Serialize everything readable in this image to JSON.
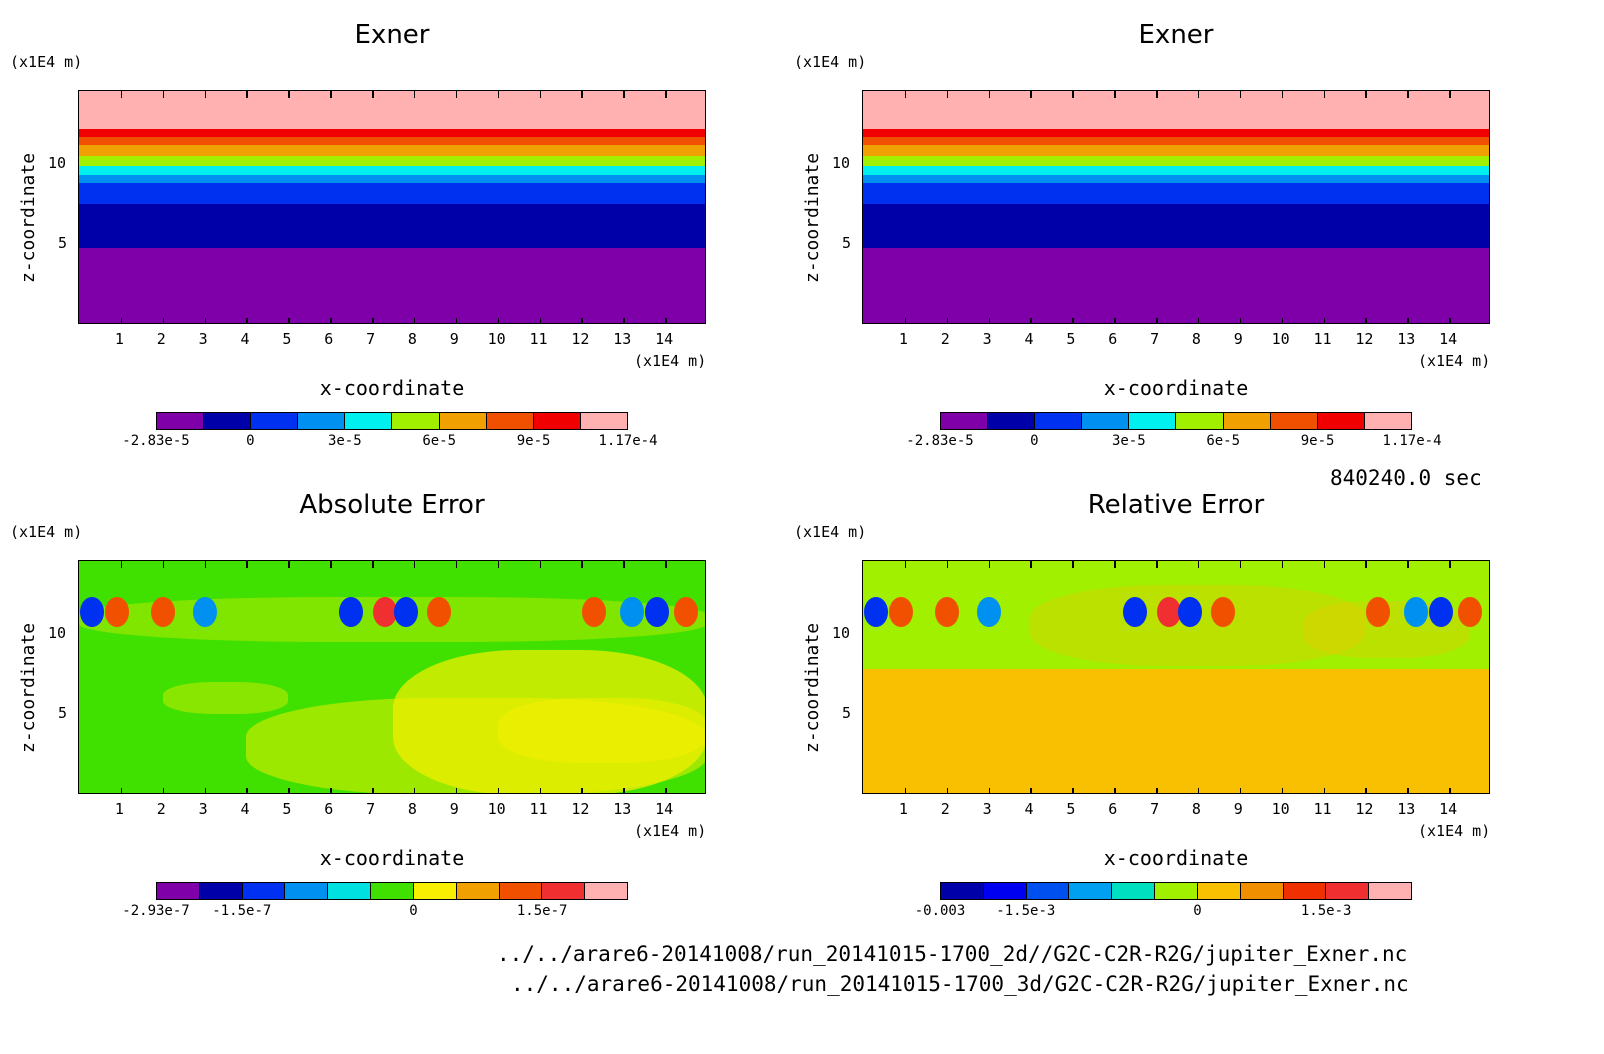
{
  "chart_data": [
    {
      "type": "heatmap",
      "title": "Exner",
      "xlabel": "x-coordinate",
      "ylabel": "z-coordinate",
      "x_unit": "(x1E4 m)",
      "y_unit": "(x1E4 m)",
      "xticks": [
        1,
        2,
        3,
        4,
        5,
        6,
        7,
        8,
        9,
        10,
        11,
        12,
        13,
        14
      ],
      "yticks": [
        5,
        10
      ],
      "xlim": [
        0,
        15
      ],
      "ylim": [
        0,
        14.5
      ],
      "colorbar_labels": [
        "-2.83e-5",
        "0",
        "3e-5",
        "6e-5",
        "9e-5",
        "1.17e-4"
      ],
      "colorbar_colors": [
        "#7f00a8",
        "#0000a8",
        "#0030f0",
        "#0090f0",
        "#00f0f0",
        "#a0f000",
        "#f0a000",
        "#f05000",
        "#f00000",
        "#ffb0b0"
      ],
      "levels_by_height": [
        {
          "z_from": 0,
          "z_to": 4.8,
          "color": "#7f00a8"
        },
        {
          "z_from": 4.8,
          "z_to": 7.5,
          "color": "#0000a8"
        },
        {
          "z_from": 7.5,
          "z_to": 8.8,
          "color": "#0030f0"
        },
        {
          "z_from": 8.8,
          "z_to": 9.3,
          "color": "#0090f0"
        },
        {
          "z_from": 9.3,
          "z_to": 9.9,
          "color": "#00f0f0"
        },
        {
          "z_from": 9.9,
          "z_to": 10.5,
          "color": "#a0f000"
        },
        {
          "z_from": 10.5,
          "z_to": 11.2,
          "color": "#f0a000"
        },
        {
          "z_from": 11.2,
          "z_to": 11.7,
          "color": "#f05000"
        },
        {
          "z_from": 11.7,
          "z_to": 12.2,
          "color": "#f00000"
        },
        {
          "z_from": 12.2,
          "z_to": 14.5,
          "color": "#ffb0b0"
        }
      ]
    },
    {
      "type": "heatmap",
      "title": "Exner",
      "xlabel": "x-coordinate",
      "ylabel": "z-coordinate",
      "x_unit": "(x1E4 m)",
      "y_unit": "(x1E4 m)",
      "xticks": [
        1,
        2,
        3,
        4,
        5,
        6,
        7,
        8,
        9,
        10,
        11,
        12,
        13,
        14
      ],
      "yticks": [
        5,
        10
      ],
      "xlim": [
        0,
        15
      ],
      "ylim": [
        0,
        14.5
      ],
      "colorbar_labels": [
        "-2.83e-5",
        "0",
        "3e-5",
        "6e-5",
        "9e-5",
        "1.17e-4"
      ],
      "colorbar_colors": [
        "#7f00a8",
        "#0000a8",
        "#0030f0",
        "#0090f0",
        "#00f0f0",
        "#a0f000",
        "#f0a000",
        "#f05000",
        "#f00000",
        "#ffb0b0"
      ],
      "levels_by_height": [
        {
          "z_from": 0,
          "z_to": 4.8,
          "color": "#7f00a8"
        },
        {
          "z_from": 4.8,
          "z_to": 7.5,
          "color": "#0000a8"
        },
        {
          "z_from": 7.5,
          "z_to": 8.8,
          "color": "#0030f0"
        },
        {
          "z_from": 8.8,
          "z_to": 9.3,
          "color": "#0090f0"
        },
        {
          "z_from": 9.3,
          "z_to": 9.9,
          "color": "#00f0f0"
        },
        {
          "z_from": 9.9,
          "z_to": 10.5,
          "color": "#a0f000"
        },
        {
          "z_from": 10.5,
          "z_to": 11.2,
          "color": "#f0a000"
        },
        {
          "z_from": 11.2,
          "z_to": 11.7,
          "color": "#f05000"
        },
        {
          "z_from": 11.7,
          "z_to": 12.2,
          "color": "#f00000"
        },
        {
          "z_from": 12.2,
          "z_to": 14.5,
          "color": "#ffb0b0"
        }
      ]
    },
    {
      "type": "heatmap",
      "title": "Absolute Error",
      "xlabel": "x-coordinate",
      "ylabel": "z-coordinate",
      "x_unit": "(x1E4 m)",
      "y_unit": "(x1E4 m)",
      "xticks": [
        1,
        2,
        3,
        4,
        5,
        6,
        7,
        8,
        9,
        10,
        11,
        12,
        13,
        14
      ],
      "yticks": [
        5,
        10
      ],
      "xlim": [
        0,
        15
      ],
      "ylim": [
        0,
        14.5
      ],
      "colorbar_labels": [
        "-2.93e-7",
        "-1.5e-7",
        "0",
        "1.5e-7"
      ],
      "colorbar_colors": [
        "#7f00a8",
        "#0000a8",
        "#0030f0",
        "#0090f0",
        "#00e0e0",
        "#40e000",
        "#f8f000",
        "#f0a000",
        "#f05000",
        "#f03030",
        "#ffb0b0"
      ],
      "background_color": "#40e000",
      "secondary_color": "#f8f000"
    },
    {
      "type": "heatmap",
      "title": "Relative Error",
      "xlabel": "x-coordinate",
      "ylabel": "z-coordinate",
      "x_unit": "(x1E4 m)",
      "y_unit": "(x1E4 m)",
      "xticks": [
        1,
        2,
        3,
        4,
        5,
        6,
        7,
        8,
        9,
        10,
        11,
        12,
        13,
        14
      ],
      "yticks": [
        5,
        10
      ],
      "xlim": [
        0,
        15
      ],
      "ylim": [
        0,
        14.5
      ],
      "colorbar_labels": [
        "-0.003",
        "-1.5e-3",
        "0",
        "1.5e-3"
      ],
      "colorbar_colors": [
        "#0000a8",
        "#0000f0",
        "#0050f0",
        "#00a0f0",
        "#00e0c0",
        "#a0f000",
        "#f8c000",
        "#f09000",
        "#f03000",
        "#f03030",
        "#ffb0b0"
      ],
      "background_color": "#a0f000",
      "secondary_color": "#f8c000"
    }
  ],
  "info": {
    "time": "840240.0 sec",
    "path_2d": "../../arare6-20141008/run_20141015-1700_2d//G2C-C2R-R2G/jupiter_Exner.nc",
    "path_3d": "../../arare6-20141008/run_20141015-1700_3d/G2C-C2R-R2G/jupiter_Exner.nc"
  }
}
